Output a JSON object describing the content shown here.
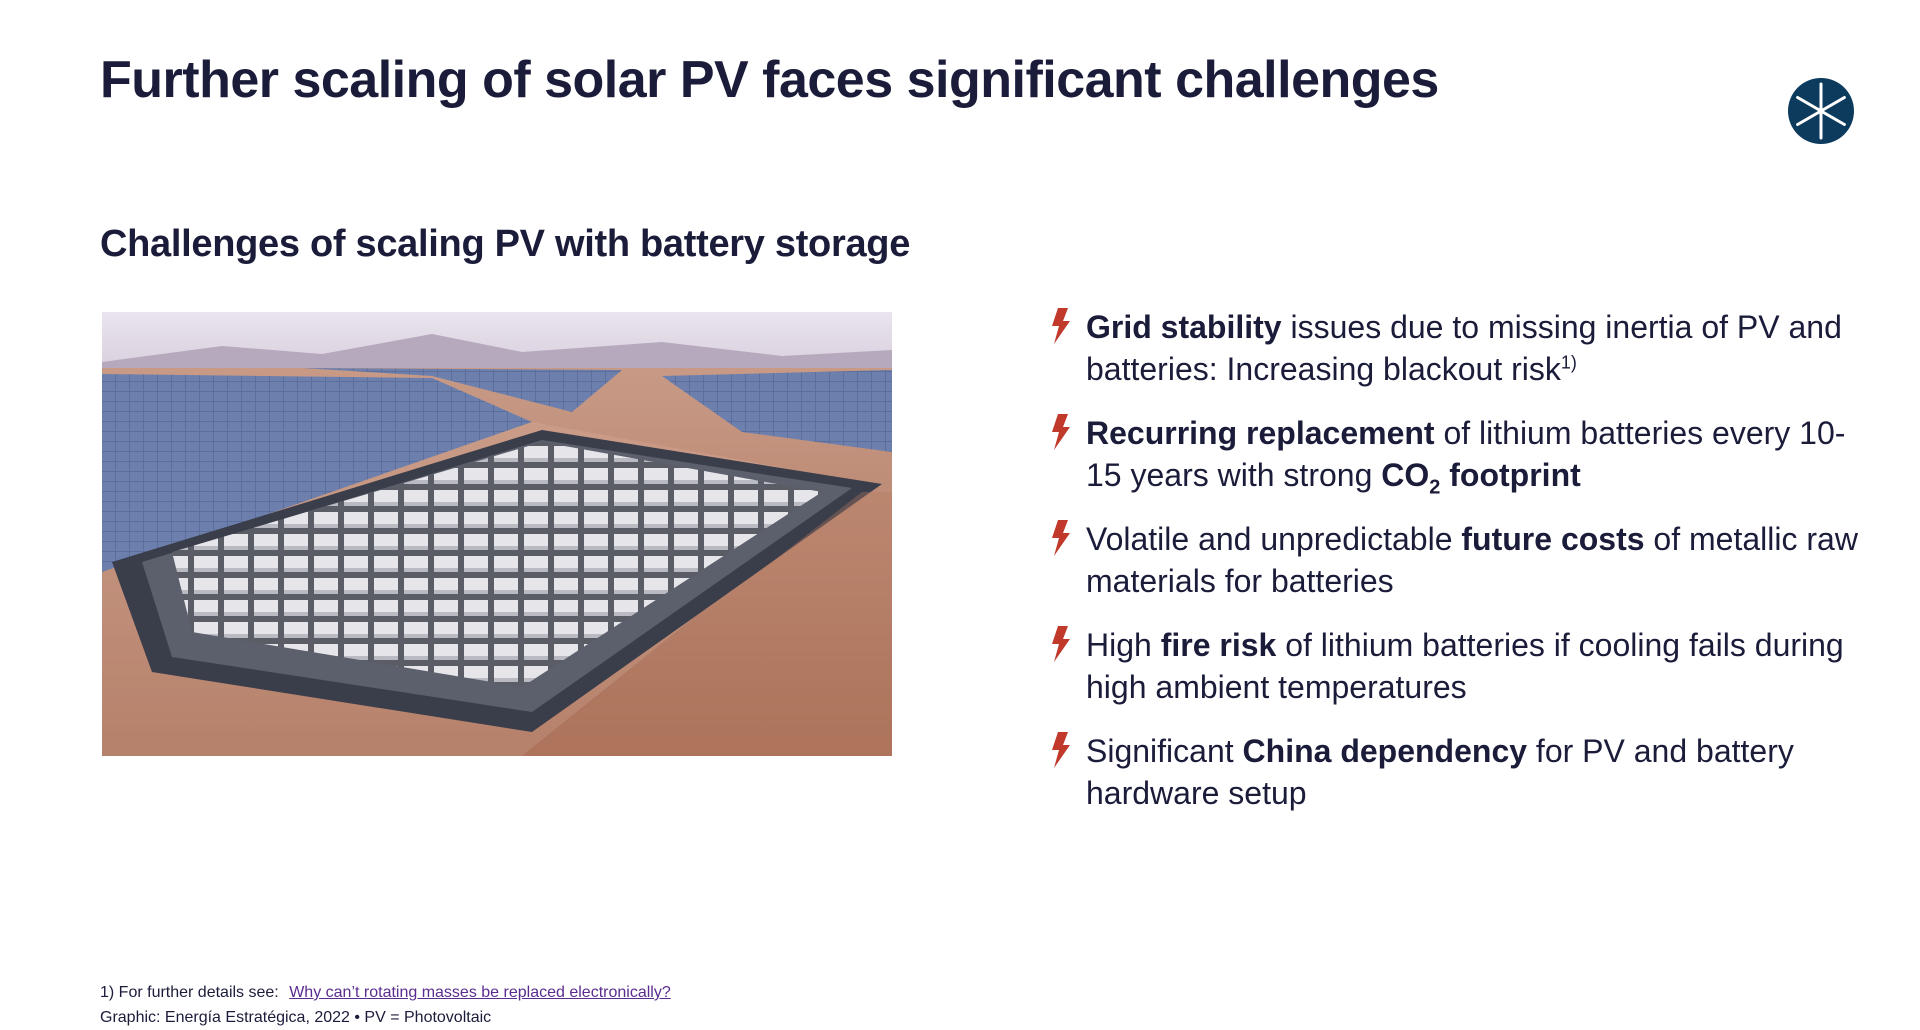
{
  "title": "Further scaling of solar PV faces significant challenges",
  "subtitle": "Challenges of scaling PV with battery storage",
  "colors": {
    "text": "#1b1c3a",
    "accent": "#c0392b",
    "logo": "#0d3b5e",
    "link": "#5b2c8f"
  },
  "logo": {
    "icon": "wheel-logo-icon"
  },
  "photo": {
    "icon": "solar-battery-farm-image"
  },
  "bullets": [
    {
      "icon": "lightning-bolt-icon",
      "bold": "Grid stability",
      "text": " issues due to missing inertia of PV and batteries: Increasing blackout risk",
      "sup": "1)"
    },
    {
      "icon": "lightning-bolt-icon",
      "bold": "Recurring replacement",
      "text": " of lithium batteries every 10-15 years with strong ",
      "bold2": "CO",
      "sub": "2",
      "bold3": " footprint"
    },
    {
      "icon": "lightning-bolt-icon",
      "pre": "Volatile and unpredictable ",
      "bold": "future costs",
      "text": " of metallic raw materials for batteries"
    },
    {
      "icon": "lightning-bolt-icon",
      "pre": "High ",
      "bold": "fire risk",
      "text": " of lithium batteries if cooling fails during high ambient temperatures"
    },
    {
      "icon": "lightning-bolt-icon",
      "pre": "Significant ",
      "bold": "China dependency",
      "text": " for PV and battery hardware setup"
    }
  ],
  "footnote": {
    "text": "1) For further details see:",
    "link": "Why can’t rotating masses be replaced electronically?"
  },
  "source": "Graphic: Energía Estratégica, 2022 • PV = Photovoltaic"
}
